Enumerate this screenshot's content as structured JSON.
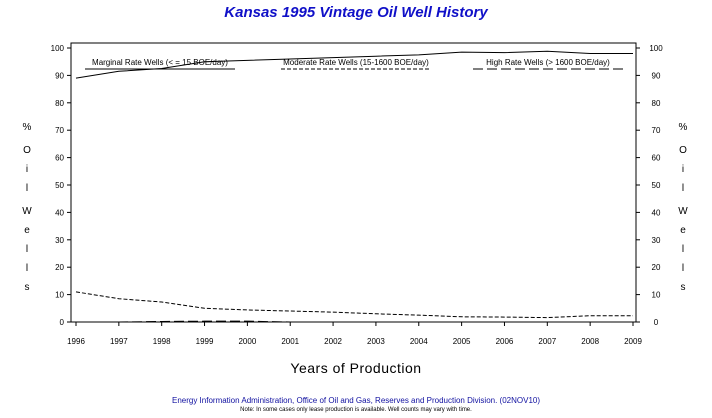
{
  "chart_data": {
    "type": "line",
    "title": "Kansas 1995 Vintage Oil Well History",
    "xlabel": "Years of Production",
    "ylabel": "% Oil Wells",
    "x": [
      "1996",
      "1997",
      "1998",
      "1999",
      "2000",
      "2001",
      "2002",
      "2003",
      "2004",
      "2005",
      "2006",
      "2007",
      "2008",
      "2009"
    ],
    "ylim": [
      0,
      100
    ],
    "yticks": [
      0,
      10,
      20,
      30,
      40,
      50,
      60,
      70,
      80,
      90,
      100
    ],
    "grid": false,
    "legend_position": "top",
    "series": [
      {
        "name": "Marginal Rate Wells (< = 15 BOE/day)",
        "style": "solid",
        "values": [
          89,
          91.5,
          92.5,
          95,
          95.5,
          96,
          96.5,
          97,
          97.5,
          98.5,
          98.3,
          98.8,
          98,
          98
        ]
      },
      {
        "name": "Moderate Rate Wells (15-1600 BOE/day)",
        "style": "short-dash",
        "values": [
          11,
          8.5,
          7.3,
          5,
          4.4,
          4,
          3.6,
          3,
          2.5,
          1.9,
          1.8,
          1.6,
          2.3,
          2.3
        ]
      },
      {
        "name": "High Rate Wells (> 1600 BOE/day)",
        "style": "long-dash",
        "values": [
          0,
          0,
          0.2,
          0.3,
          0.3,
          0,
          0,
          0,
          0,
          0,
          0,
          0,
          0,
          0
        ]
      }
    ]
  },
  "footer": {
    "source": "Energy Information Administration, Office of Oil and Gas, Reserves and Production Division. (02NOV10)",
    "note": "Note: In some cases only lease production is available. Well counts may vary with time."
  }
}
